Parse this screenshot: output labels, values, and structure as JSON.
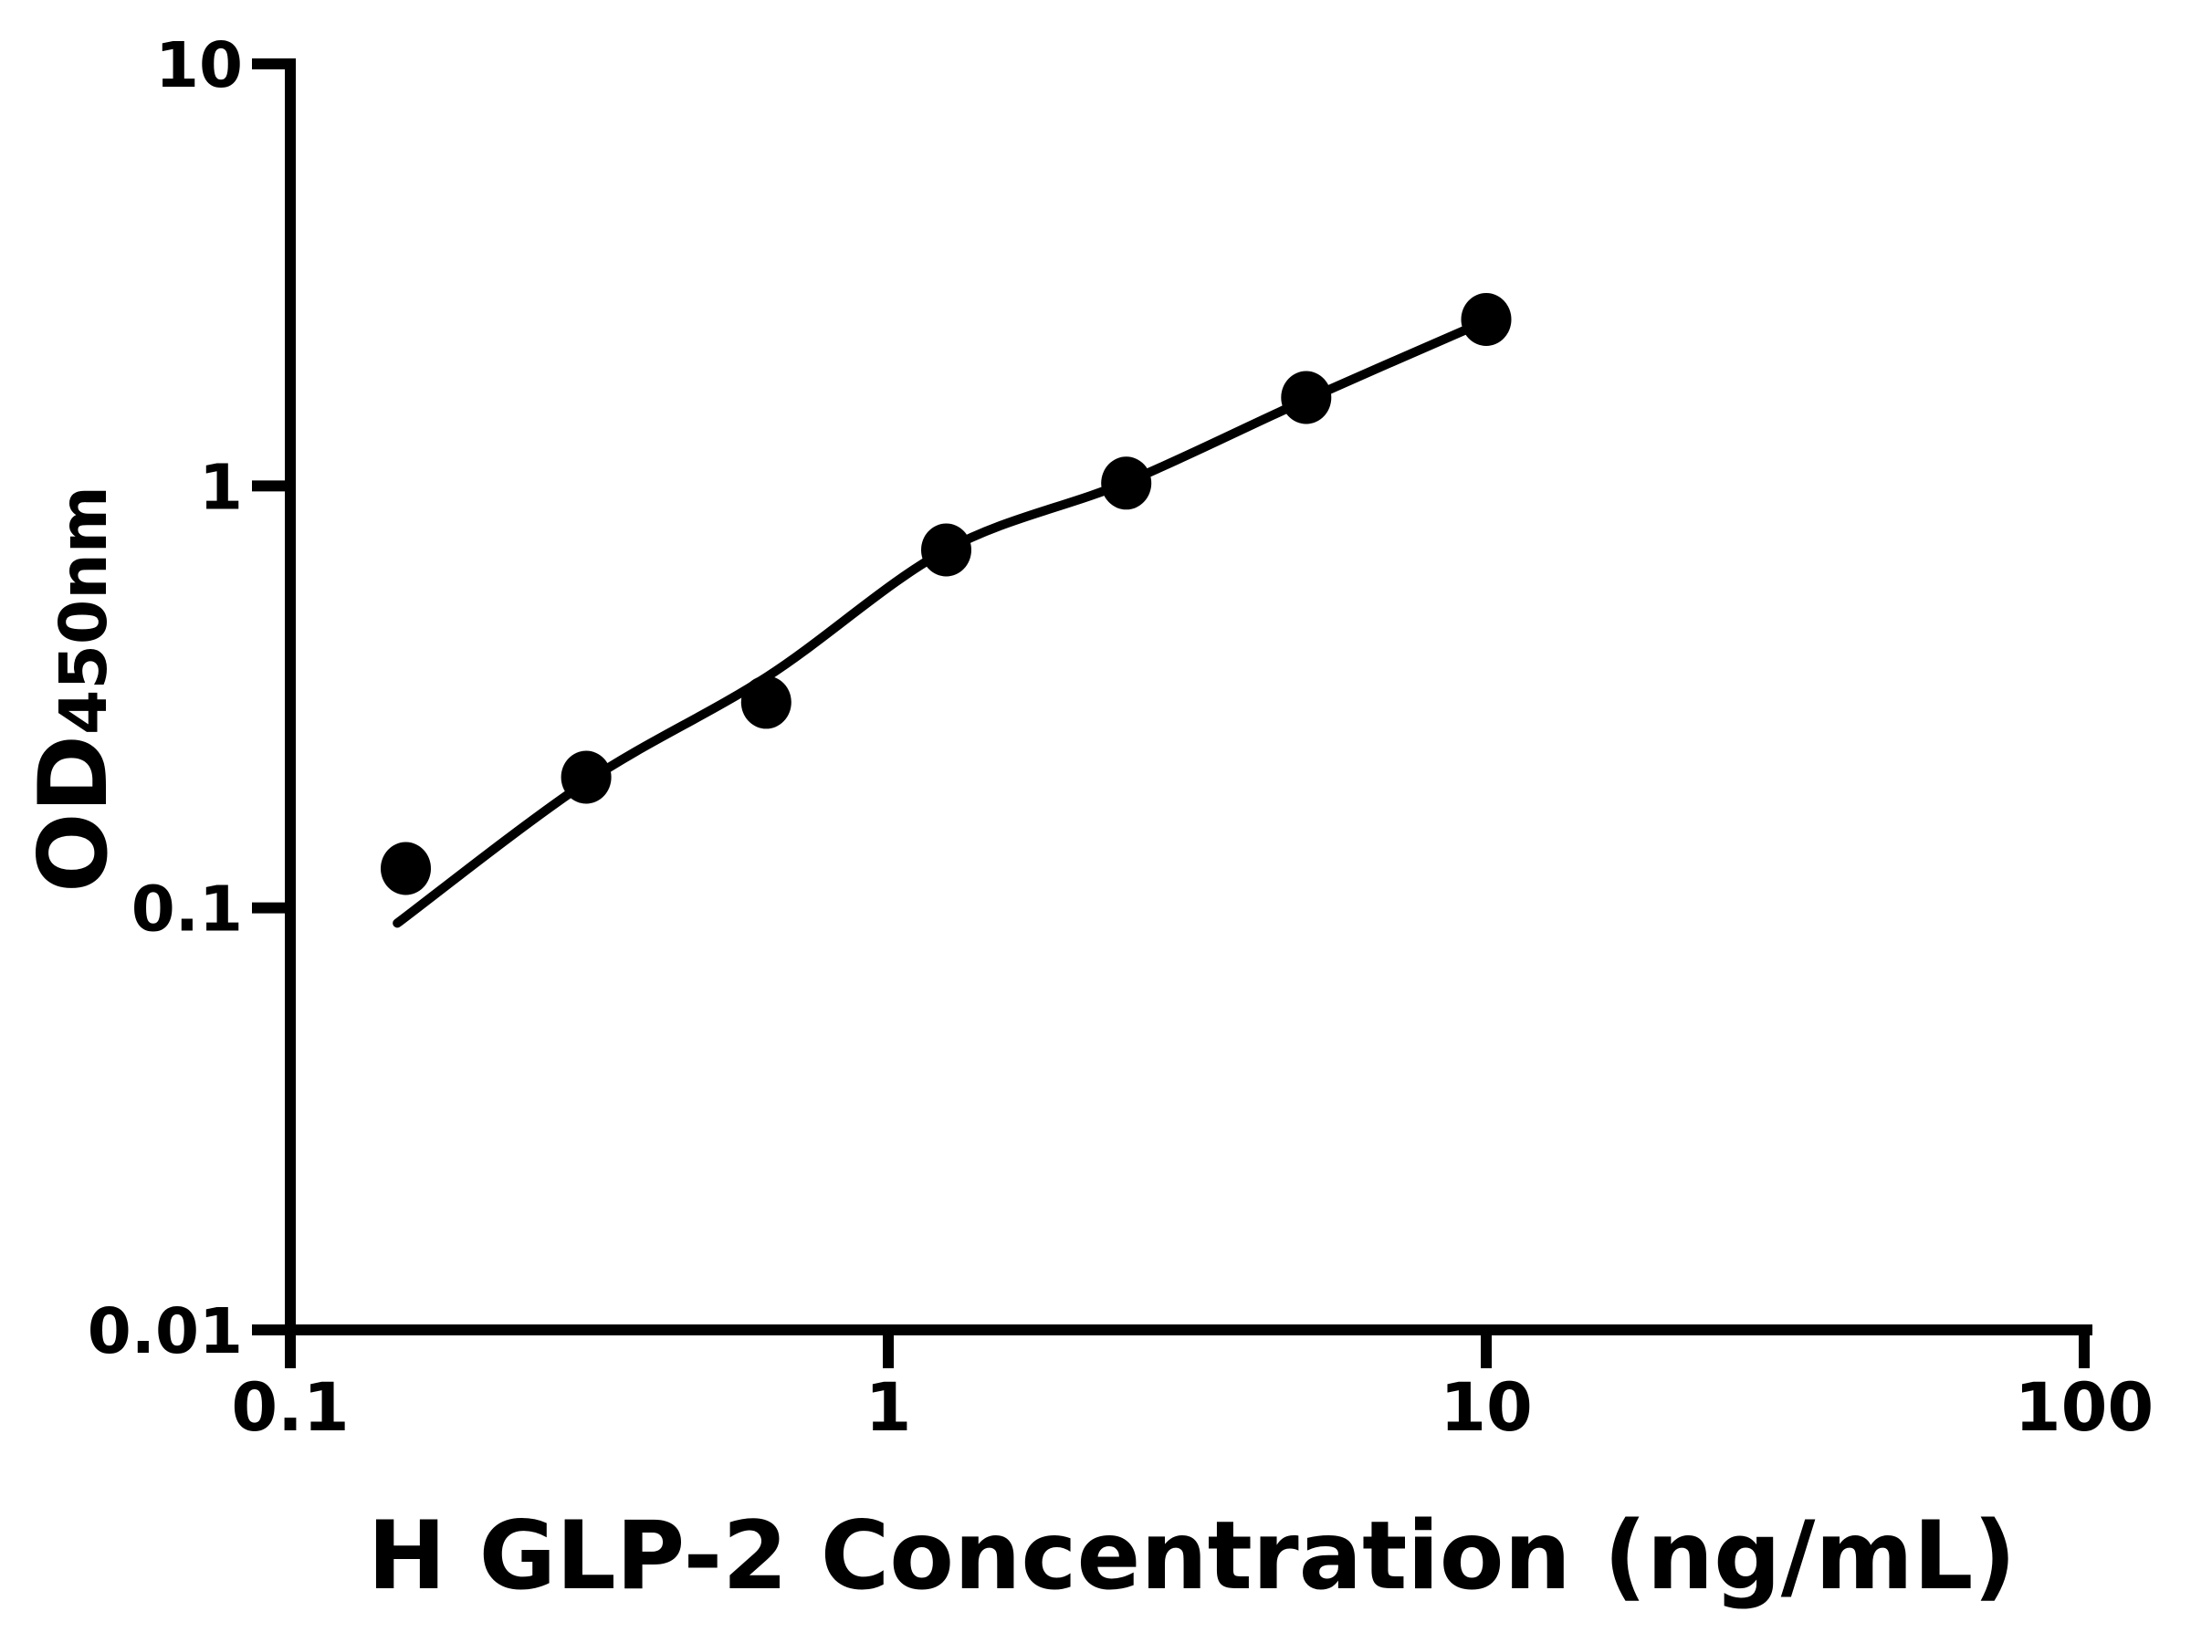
{
  "chart_data": {
    "type": "scatter",
    "title": "",
    "xlabel": "H GLP-2 Concentration (ng/mL)",
    "ylabel": "OD450nm",
    "ylabel_main": "OD",
    "ylabel_sub": "450nm",
    "x_scale": "log",
    "y_scale": "log",
    "xlim": [
      0.1,
      100
    ],
    "ylim": [
      0.01,
      10
    ],
    "grid": false,
    "legend": "none",
    "x_ticks": [
      {
        "value": 0.1,
        "label": "0.1"
      },
      {
        "value": 1,
        "label": "1"
      },
      {
        "value": 10,
        "label": "10"
      },
      {
        "value": 100,
        "label": "100"
      }
    ],
    "y_ticks": [
      {
        "value": 0.01,
        "label": "0.01"
      },
      {
        "value": 0.1,
        "label": "0.1"
      },
      {
        "value": 1,
        "label": "1"
      },
      {
        "value": 10,
        "label": "10"
      }
    ],
    "points": {
      "x": [
        0.156,
        0.3125,
        0.625,
        1.25,
        2.5,
        5,
        10
      ],
      "y": [
        0.124,
        0.204,
        0.307,
        0.705,
        1.015,
        1.62,
        2.48
      ]
    },
    "fit_curve": {
      "x": [
        0.151,
        0.313,
        0.627,
        1.25,
        2.5,
        5,
        10
      ],
      "y": [
        0.092,
        0.199,
        0.353,
        0.705,
        1.02,
        1.6,
        2.46
      ]
    },
    "colors": {
      "foreground": "#000000",
      "background": "#ffffff"
    }
  }
}
